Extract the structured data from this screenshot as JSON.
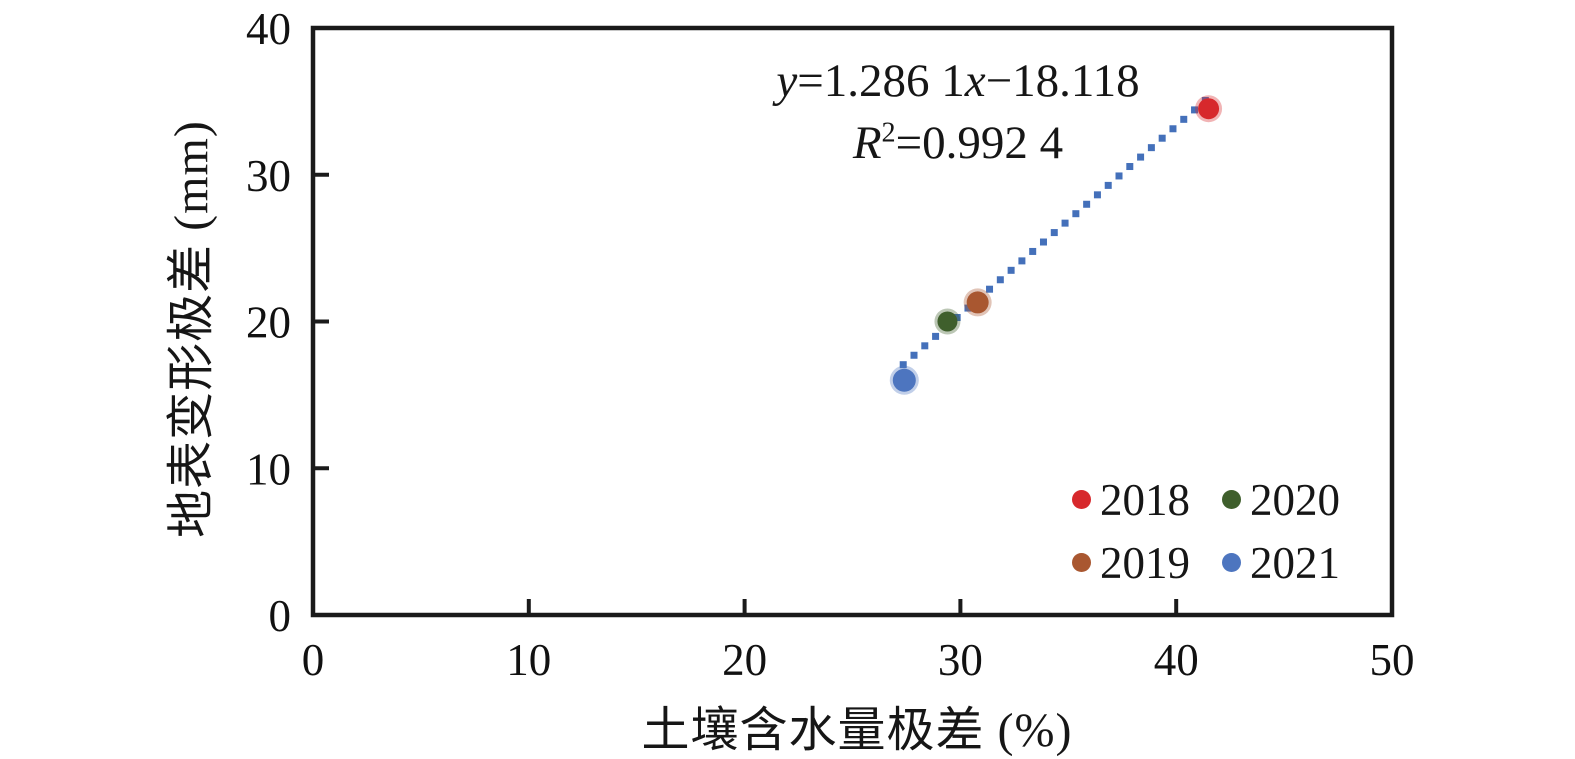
{
  "figure": {
    "background": "#ffffff",
    "axis_color": "#1a1a1a"
  },
  "axes": {
    "x": {
      "label": "土壤含水量极差 (%)"
    },
    "y": {
      "label": "地表变形极差 (mm)"
    }
  },
  "annotation": {
    "equation": {
      "y_var": "y",
      "mid": "=1.286 1",
      "x_var": "x",
      "tail": "−18.118"
    },
    "r_squared": {
      "r_var": "R",
      "exponent": "2",
      "tail": "=0.992 4"
    }
  },
  "chart_data": {
    "type": "scatter",
    "title": "",
    "xlabel": "土壤含水量极差 (%)",
    "ylabel": "地表变形极差 (mm)",
    "xlim": [
      0,
      50
    ],
    "ylim": [
      0,
      40
    ],
    "x_ticks": [
      0,
      10,
      20,
      30,
      40,
      50
    ],
    "y_ticks": [
      0,
      10,
      20,
      30,
      40
    ],
    "grid": false,
    "legend_position": "lower-right-inside",
    "series": [
      {
        "name": "2018",
        "color": "#d7282c",
        "marker": "circle",
        "marker_size": 21,
        "points": [
          [
            41.5,
            34.5
          ]
        ]
      },
      {
        "name": "2019",
        "color": "#a95730",
        "marker": "circle",
        "marker_size": 22,
        "points": [
          [
            30.8,
            21.3
          ]
        ]
      },
      {
        "name": "2020",
        "color": "#3f5f2c",
        "marker": "circle",
        "marker_size": 20,
        "points": [
          [
            29.4,
            20.0
          ]
        ]
      },
      {
        "name": "2021",
        "color": "#4d75bf",
        "marker": "circle",
        "marker_size": 23,
        "points": [
          [
            27.4,
            16.0
          ]
        ]
      }
    ],
    "trendline": {
      "slope": 1.2861,
      "intercept": -18.118,
      "x_start": 27.35,
      "x_end": 41.55,
      "point_step": 0.5,
      "style": "dotted-squares",
      "color": "#4470ba",
      "equation_text": "y=1.286 1x−18.118",
      "r2_text": "R²=0.992 4"
    }
  }
}
